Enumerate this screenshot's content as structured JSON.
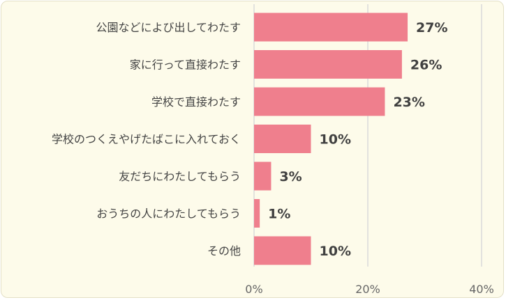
{
  "chart_data": {
    "type": "bar",
    "orientation": "horizontal",
    "categories": [
      "公園などによび出してわたす",
      "家に行って直接わたす",
      "学校で直接わたす",
      "学校のつくえやげたばこに入れておく",
      "友だちにわたしてもらう",
      "おうちの人にわたしてもらう",
      "その他"
    ],
    "values": [
      27,
      26,
      23,
      10,
      3,
      1,
      10
    ],
    "value_labels": [
      "27%",
      "26%",
      "23%",
      "10%",
      "3%",
      "1%",
      "10%"
    ],
    "xlim": [
      0,
      40
    ],
    "xticks": [
      0,
      20,
      40
    ],
    "xtick_labels": [
      "0%",
      "20%",
      "40%"
    ],
    "grid": true,
    "bar_color": "#ef7f8d",
    "title": "",
    "xlabel": "",
    "ylabel": ""
  }
}
